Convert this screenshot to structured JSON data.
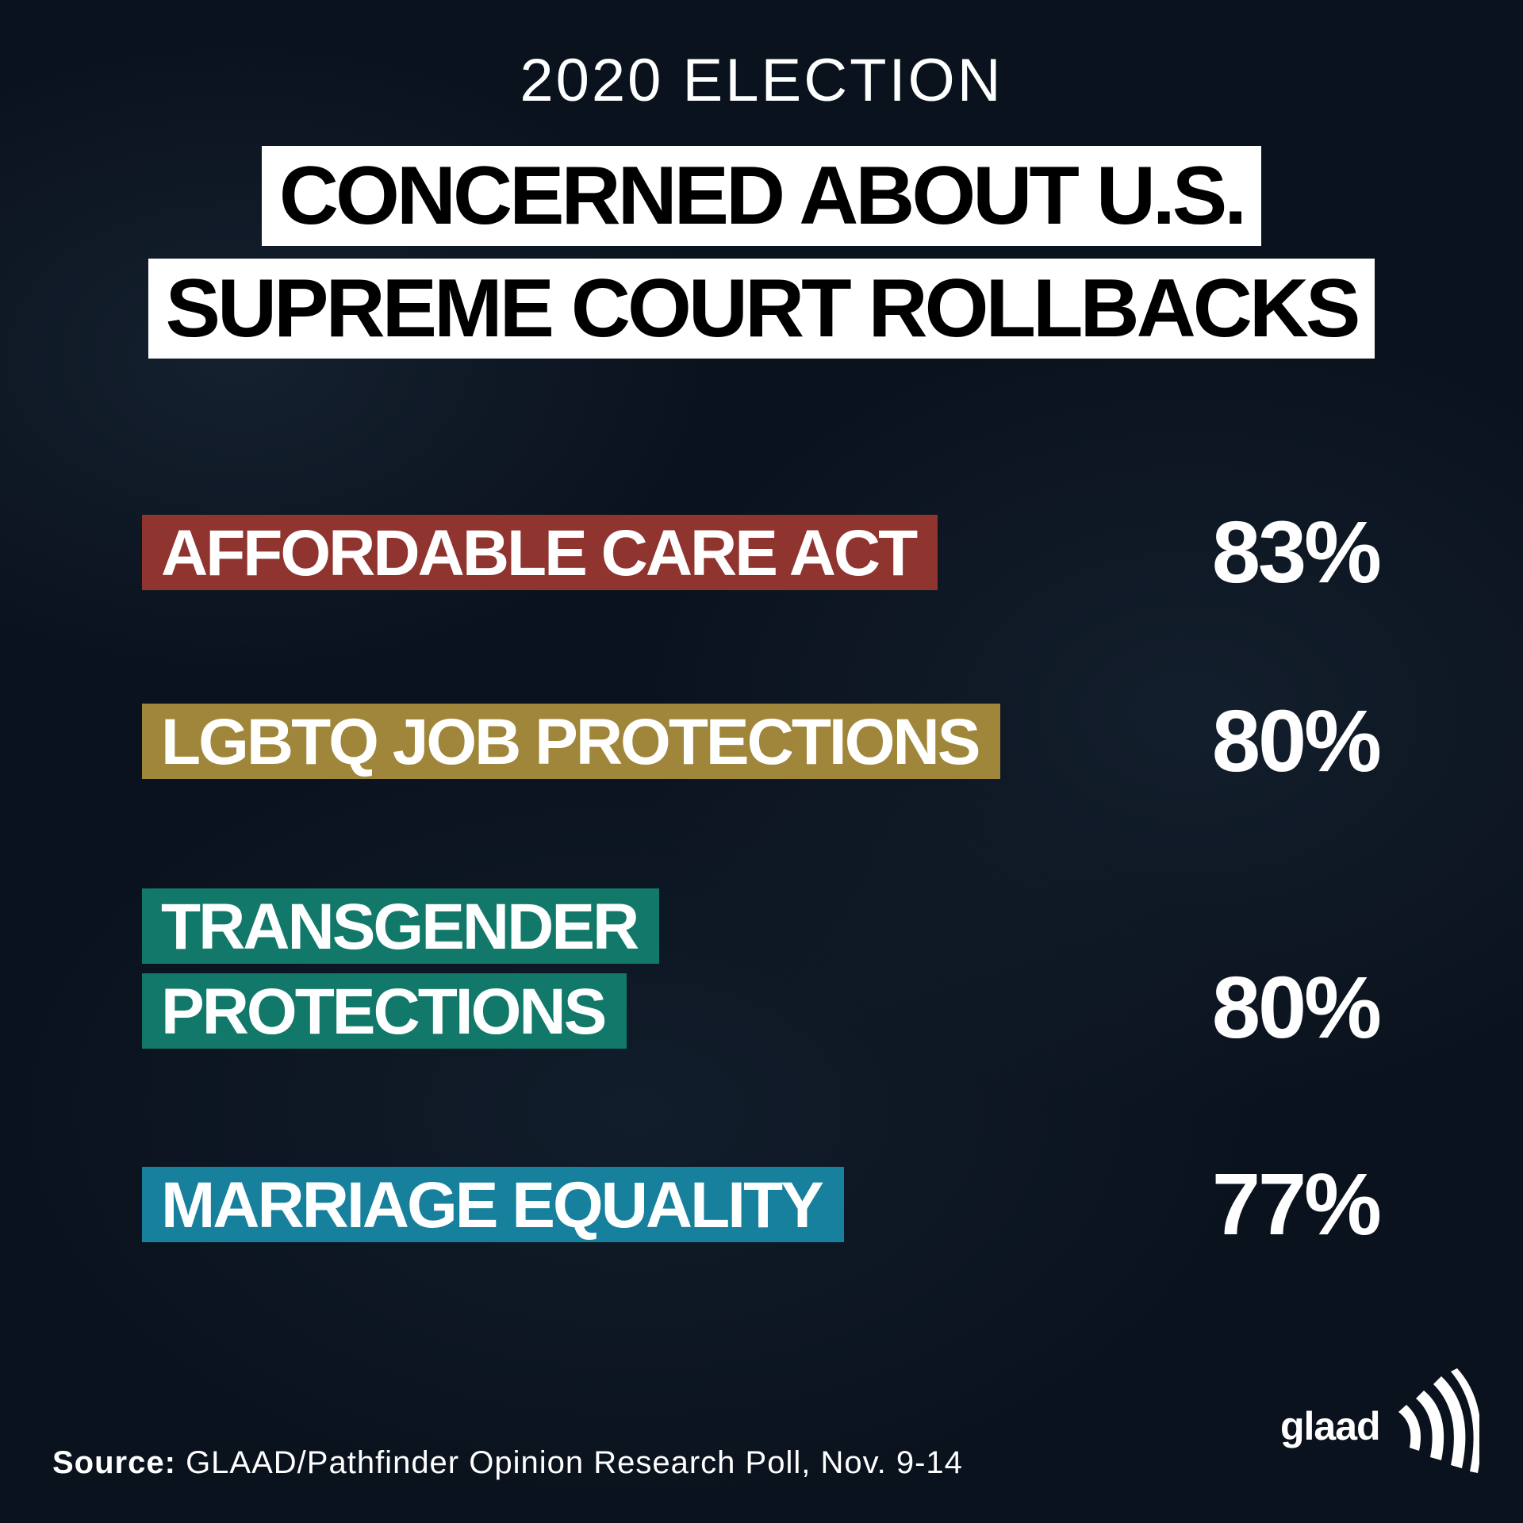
{
  "header": {
    "kicker": "2020 ELECTION",
    "title_lines": [
      "CONCERNED ABOUT U.S.",
      "SUPREME COURT ROLLBACKS"
    ]
  },
  "items": [
    {
      "label_lines": [
        "AFFORDABLE CARE ACT"
      ],
      "value": "83%",
      "color": "#8f342f"
    },
    {
      "label_lines": [
        "LGBTQ JOB PROTECTIONS"
      ],
      "value": "80%",
      "color": "#a0863a"
    },
    {
      "label_lines": [
        "TRANSGENDER",
        "PROTECTIONS"
      ],
      "value": "80%",
      "color": "#12796a"
    },
    {
      "label_lines": [
        "MARRIAGE EQUALITY"
      ],
      "value": "77%",
      "color": "#17809c"
    }
  ],
  "footer": {
    "source_label": "Source:",
    "source_text": "GLAAD/Pathfinder Opinion Research Poll, Nov. 9-14",
    "logo": "glaad"
  }
}
